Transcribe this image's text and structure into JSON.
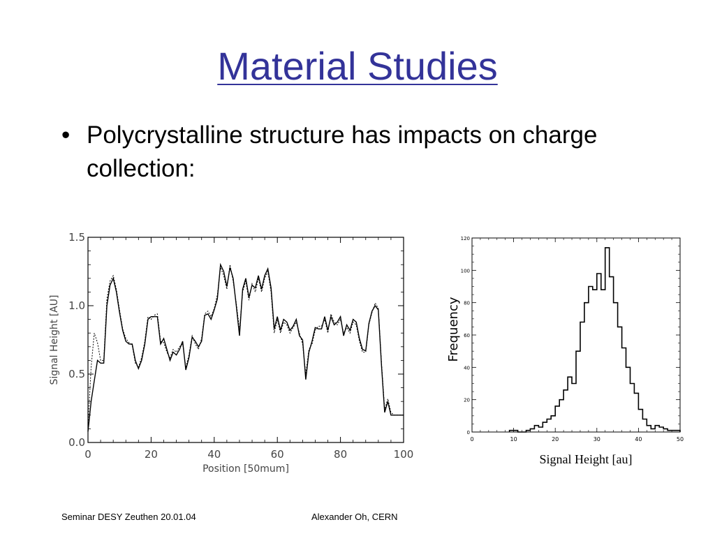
{
  "slide": {
    "title": "Material Studies",
    "bullet_symbol": "•",
    "bullet_text": "Polycrystalline structure has impacts on charge collection:"
  },
  "footer": {
    "left": "Seminar DESY Zeuthen 20.01.04",
    "right": "Alexander Oh, CERN"
  },
  "chart_data": [
    {
      "type": "line",
      "xlabel": "Position [50mum]",
      "ylabel": "Signal Height [AU]",
      "xlim": [
        0,
        100
      ],
      "ylim": [
        0,
        1.5
      ],
      "x_ticks": [
        0,
        20,
        40,
        60,
        80,
        100
      ],
      "y_ticks": [
        0.0,
        0.5,
        1.0,
        1.5
      ],
      "y_tick_labels": [
        "0.0",
        "0.5",
        "1.0",
        "1.5"
      ],
      "grid": false,
      "series": [
        {
          "style": "solid",
          "x": [
            0,
            1,
            2,
            3,
            4,
            5,
            6,
            7,
            8,
            9,
            10,
            11,
            12,
            13,
            14,
            15,
            16,
            17,
            18,
            19,
            20,
            21,
            22,
            23,
            24,
            25,
            26,
            27,
            28,
            29,
            30,
            31,
            32,
            33,
            34,
            35,
            36,
            37,
            38,
            39,
            40,
            41,
            42,
            43,
            44,
            45,
            46,
            47,
            48,
            49,
            50,
            51,
            52,
            53,
            54,
            55,
            56,
            57,
            58,
            59,
            60,
            61,
            62,
            63,
            64,
            65,
            66,
            67,
            68,
            69,
            70,
            71,
            72,
            73,
            74,
            75,
            76,
            77,
            78,
            79,
            80,
            81,
            82,
            83,
            84,
            85,
            86,
            87,
            88,
            89,
            90,
            91,
            92,
            93,
            94,
            95,
            96,
            97,
            98,
            99,
            100
          ],
          "y": [
            0.08,
            0.3,
            0.45,
            0.6,
            0.58,
            0.58,
            1.0,
            1.15,
            1.2,
            1.1,
            0.95,
            0.82,
            0.74,
            0.72,
            0.72,
            0.6,
            0.54,
            0.6,
            0.72,
            0.9,
            0.92,
            0.92,
            0.92,
            0.72,
            0.76,
            0.68,
            0.6,
            0.66,
            0.64,
            0.68,
            0.74,
            0.53,
            0.62,
            0.77,
            0.74,
            0.7,
            0.74,
            0.93,
            0.94,
            0.9,
            0.97,
            1.05,
            1.3,
            1.25,
            1.14,
            1.28,
            1.2,
            1.0,
            0.78,
            1.12,
            1.2,
            1.06,
            1.15,
            1.13,
            1.22,
            1.12,
            1.22,
            1.27,
            1.13,
            0.83,
            0.92,
            0.82,
            0.9,
            0.88,
            0.82,
            0.85,
            0.9,
            0.78,
            0.75,
            0.46,
            0.66,
            0.74,
            0.84,
            0.83,
            0.83,
            0.92,
            0.82,
            0.92,
            0.86,
            0.88,
            0.92,
            0.78,
            0.86,
            0.82,
            0.9,
            0.88,
            0.76,
            0.68,
            0.67,
            0.87,
            0.96,
            1.0,
            0.97,
            0.56,
            0.22,
            0.3,
            0.2,
            0.2,
            0.2,
            0.2,
            0.2
          ]
        },
        {
          "style": "dotted",
          "x": [
            0,
            1,
            2,
            3,
            4,
            5,
            6,
            7,
            8,
            9,
            10,
            11,
            12,
            13,
            14,
            15,
            16,
            17,
            18,
            19,
            20,
            21,
            22,
            23,
            24,
            25,
            26,
            27,
            28,
            29,
            30,
            31,
            32,
            33,
            34,
            35,
            36,
            37,
            38,
            39,
            40,
            41,
            42,
            43,
            44,
            45,
            46,
            47,
            48,
            49,
            50,
            51,
            52,
            53,
            54,
            55,
            56,
            57,
            58,
            59,
            60,
            61,
            62,
            63,
            64,
            65,
            66,
            67,
            68,
            69,
            70,
            71,
            72,
            73,
            74,
            75,
            76,
            77,
            78,
            79,
            80,
            81,
            82,
            83,
            84,
            85,
            86,
            87,
            88,
            89,
            90,
            91,
            92,
            93,
            94,
            95,
            96,
            97,
            98,
            99,
            100
          ],
          "y": [
            0.12,
            0.55,
            0.8,
            0.73,
            0.6,
            0.6,
            1.05,
            1.18,
            1.22,
            1.12,
            0.97,
            0.83,
            0.76,
            0.73,
            0.71,
            0.58,
            0.55,
            0.62,
            0.74,
            0.92,
            0.9,
            0.93,
            0.94,
            0.74,
            0.73,
            0.66,
            0.62,
            0.68,
            0.66,
            0.7,
            0.72,
            0.55,
            0.64,
            0.78,
            0.72,
            0.68,
            0.76,
            0.94,
            0.96,
            0.92,
            0.98,
            1.08,
            1.28,
            1.22,
            1.12,
            1.3,
            1.18,
            1.02,
            0.82,
            1.1,
            1.18,
            1.04,
            1.16,
            1.1,
            1.2,
            1.1,
            1.2,
            1.25,
            1.1,
            0.8,
            0.9,
            0.8,
            0.88,
            0.86,
            0.8,
            0.84,
            0.88,
            0.8,
            0.72,
            0.5,
            0.68,
            0.72,
            0.82,
            0.85,
            0.85,
            0.9,
            0.8,
            0.94,
            0.88,
            0.86,
            0.9,
            0.8,
            0.84,
            0.8,
            0.88,
            0.86,
            0.74,
            0.66,
            0.66,
            0.86,
            0.95,
            1.02,
            0.98,
            0.58,
            0.24,
            0.32,
            0.22,
            0.2,
            0.2,
            0.2,
            0.2
          ]
        }
      ]
    },
    {
      "type": "bar",
      "subtype": "histogram",
      "xlabel": "Signal Height [au]",
      "ylabel": "Frequency",
      "xlim": [
        0,
        50
      ],
      "ylim": [
        0,
        120
      ],
      "x_ticks": [
        0,
        10,
        20,
        30,
        40,
        50
      ],
      "y_ticks": [
        0,
        20,
        40,
        60,
        80,
        100,
        120
      ],
      "grid": false,
      "bin_width": 1,
      "bin_starts": [
        9,
        10,
        11,
        12,
        13,
        14,
        15,
        16,
        17,
        18,
        19,
        20,
        21,
        22,
        23,
        24,
        25,
        26,
        27,
        28,
        29,
        30,
        31,
        32,
        33,
        34,
        35,
        36,
        37,
        38,
        39,
        40,
        41,
        42,
        43,
        44,
        45,
        46,
        47,
        48,
        49
      ],
      "values": [
        1,
        1,
        0,
        0,
        1,
        2,
        4,
        3,
        6,
        8,
        10,
        16,
        20,
        26,
        34,
        30,
        50,
        68,
        80,
        90,
        88,
        98,
        88,
        114,
        96,
        80,
        65,
        52,
        40,
        30,
        24,
        14,
        8,
        4,
        2,
        4,
        3,
        2,
        1,
        1,
        1
      ]
    }
  ]
}
